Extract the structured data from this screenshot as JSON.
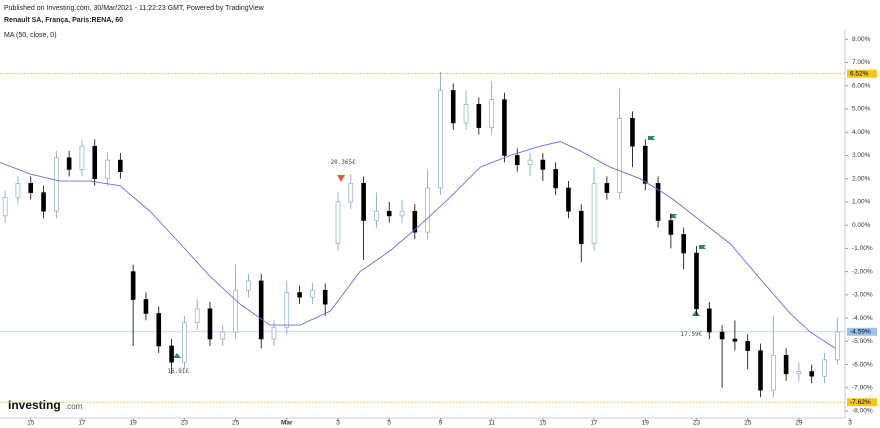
{
  "chart_data": {
    "type": "candlestick",
    "published": "Published on Investing.com, 30/Mar/2021 - 11:22:23 GMT, Powered by TradingView",
    "title": "Renault SA, França, Paris:RENA, 60",
    "logo": "Investing",
    "logo_suffix": ".com",
    "up_color": "#ffffff",
    "up_border": "#7f9fc8",
    "down_color": "#000000",
    "xlim": [
      0.4,
      16.9
    ],
    "ylim": [
      -8.3,
      8.4
    ],
    "grid": false,
    "xticks": [
      {
        "value": 1,
        "label": "15"
      },
      {
        "value": 2,
        "label": "17"
      },
      {
        "value": 3,
        "label": "19"
      },
      {
        "value": 4,
        "label": "23"
      },
      {
        "value": 5,
        "label": "25"
      },
      {
        "value": 6,
        "label": "Mar"
      },
      {
        "value": 7,
        "label": "3"
      },
      {
        "value": 8,
        "label": "5"
      },
      {
        "value": 9,
        "label": "9"
      },
      {
        "value": 10,
        "label": "11"
      },
      {
        "value": 11,
        "label": "15"
      },
      {
        "value": 12,
        "label": "17"
      },
      {
        "value": 13,
        "label": "19"
      },
      {
        "value": 14,
        "label": "23"
      },
      {
        "value": 15,
        "label": "25"
      },
      {
        "value": 16,
        "label": "29"
      },
      {
        "value": 17,
        "label": "3"
      }
    ],
    "yticks": [
      {
        "value": 8,
        "label": "8.00%"
      },
      {
        "value": 7,
        "label": "7.00%"
      },
      {
        "value": 6,
        "label": "6.00%"
      },
      {
        "value": 5,
        "label": "5.00%"
      },
      {
        "value": 4,
        "label": "4.00%"
      },
      {
        "value": 3,
        "label": "3.00%"
      },
      {
        "value": 2,
        "label": "2.00%"
      },
      {
        "value": 1,
        "label": "1.00%"
      },
      {
        "value": 0,
        "label": "0.00%"
      },
      {
        "value": -1,
        "label": "-1.00%"
      },
      {
        "value": -2,
        "label": "-2.00%"
      },
      {
        "value": -3,
        "label": "-3.00%"
      },
      {
        "value": -4,
        "label": "-4.00%"
      },
      {
        "value": -5,
        "label": "-5.00%"
      },
      {
        "value": -6,
        "label": "-6.00%"
      },
      {
        "value": -7,
        "label": "-7.00%"
      },
      {
        "value": -8,
        "label": "-8.00%"
      }
    ],
    "levels": [
      {
        "value": 6.52,
        "label": "6.52%",
        "color": "#f5c518",
        "dotted": true
      },
      {
        "value": -4.59,
        "label": "-4.59%",
        "color": "#9cc2e8",
        "dotted": false
      },
      {
        "value": -7.62,
        "label": "-7.62%",
        "color": "#f5c518",
        "dotted": true
      }
    ],
    "annotations": [
      {
        "text": "20.365€",
        "x": 7.1,
        "y": 2.7
      },
      {
        "text": "16.91€",
        "x": 3.88,
        "y": -6.3
      },
      {
        "text": "17.59€",
        "x": 13.9,
        "y": -4.7
      }
    ],
    "x": [
      0.5,
      0.75,
      1,
      1.25,
      1.5,
      1.75,
      2,
      2.25,
      2.5,
      2.75,
      3,
      3.25,
      3.5,
      3.75,
      4,
      4.25,
      4.5,
      4.75,
      5,
      5.25,
      5.5,
      5.75,
      6,
      6.25,
      6.5,
      6.75,
      7,
      7.25,
      7.5,
      7.75,
      8,
      8.25,
      8.5,
      8.75,
      9,
      9.25,
      9.5,
      9.75,
      10,
      10.25,
      10.5,
      10.75,
      11,
      11.25,
      11.5,
      11.75,
      12,
      12.25,
      12.5,
      12.75,
      13,
      13.25,
      13.5,
      13.75,
      14,
      14.25,
      14.5,
      14.75,
      15,
      15.25,
      15.5,
      15.75,
      16,
      16.25,
      16.5,
      16.75
    ],
    "open": [
      0.4,
      1.2,
      1.8,
      1.4,
      0.6,
      2.9,
      2.4,
      3.4,
      2.0,
      2.8,
      -2.0,
      -3.2,
      -3.8,
      -5.2,
      -5.9,
      -4.2,
      -3.6,
      -4.9,
      -4.6,
      -2.8,
      -2.4,
      -4.9,
      -4.4,
      -2.9,
      -3.1,
      -2.8,
      -0.8,
      1.0,
      1.8,
      0.2,
      0.6,
      0.4,
      0.6,
      -0.3,
      1.6,
      5.8,
      4.4,
      5.2,
      4.2,
      5.4,
      3.0,
      2.6,
      2.8,
      2.4,
      1.6,
      0.6,
      -0.8,
      1.8,
      1.4,
      4.6,
      3.4,
      1.8,
      0.2,
      -0.4,
      -1.2,
      -3.6,
      -4.6,
      -4.9,
      -5.0,
      -5.4,
      -7.1,
      -5.6,
      -6.4,
      -6.3,
      -6.5,
      -5.8
    ],
    "high": [
      1.5,
      2.1,
      2.1,
      1.7,
      3.2,
      3.2,
      3.7,
      3.7,
      3.1,
      3.1,
      -1.7,
      -2.9,
      -3.5,
      -4.9,
      -3.9,
      -3.2,
      -3.3,
      -4.3,
      -1.7,
      -2.1,
      -2.1,
      -4.1,
      -2.4,
      -2.6,
      -2.5,
      -2.5,
      1.4,
      2.2,
      2.1,
      1.4,
      1.0,
      1.1,
      0.9,
      2.4,
      6.6,
      6.1,
      5.8,
      5.5,
      6.2,
      5.7,
      3.3,
      3.1,
      3.1,
      2.7,
      1.9,
      0.9,
      2.5,
      2.1,
      5.9,
      4.9,
      3.7,
      2.1,
      0.5,
      -0.1,
      -0.9,
      -3.3,
      -4.3,
      -4.1,
      -4.7,
      -5.1,
      -3.9,
      -5.3,
      -5.9,
      -6.0,
      -5.5,
      -4.0
    ],
    "low": [
      0.1,
      0.9,
      1.1,
      0.3,
      0.3,
      2.1,
      2.1,
      1.7,
      1.7,
      2.0,
      -5.2,
      -4.1,
      -5.5,
      -6.4,
      -6.2,
      -4.5,
      -5.2,
      -5.2,
      -4.9,
      -3.1,
      -5.3,
      -5.2,
      -4.7,
      -3.4,
      -3.4,
      -3.9,
      -1.1,
      0.7,
      -1.5,
      -0.1,
      0.1,
      0.1,
      -0.6,
      -0.6,
      1.3,
      4.1,
      4.1,
      3.9,
      3.9,
      2.7,
      2.3,
      2.1,
      1.9,
      1.3,
      0.3,
      -1.6,
      -1.1,
      1.1,
      1.1,
      2.5,
      1.5,
      -0.1,
      -1.0,
      -1.9,
      -3.9,
      -4.9,
      -7.0,
      -5.4,
      -6.2,
      -7.4,
      -7.4,
      -6.7,
      -6.7,
      -6.8,
      -6.8,
      -6.0
    ],
    "close": [
      1.2,
      1.8,
      1.4,
      0.6,
      2.9,
      2.4,
      3.4,
      2.0,
      2.8,
      2.3,
      -3.2,
      -3.8,
      -5.2,
      -5.9,
      -4.2,
      -3.6,
      -4.9,
      -4.6,
      -2.8,
      -2.4,
      -4.9,
      -4.4,
      -2.9,
      -3.1,
      -2.8,
      -3.4,
      1.0,
      1.8,
      0.2,
      0.6,
      0.4,
      0.6,
      -0.3,
      1.6,
      5.8,
      4.4,
      5.2,
      4.2,
      5.4,
      3.0,
      2.6,
      2.8,
      2.4,
      1.6,
      0.6,
      -0.8,
      1.8,
      1.4,
      4.6,
      3.4,
      1.8,
      0.2,
      -0.4,
      -1.2,
      -3.6,
      -4.6,
      -4.9,
      -5.0,
      -5.4,
      -7.1,
      -5.6,
      -6.4,
      -6.3,
      -6.5,
      -5.8,
      -4.6
    ],
    "series": [
      {
        "name": "MA (50, close, 0)",
        "color": "#6b6bea",
        "x": [
          0.4,
          0.99,
          1.57,
          2.16,
          2.74,
          3.33,
          3.92,
          4.5,
          5.09,
          5.67,
          6.26,
          6.85,
          7.43,
          8.02,
          8.6,
          9.19,
          9.78,
          10.36,
          10.95,
          11.34,
          11.73,
          12.31,
          12.9,
          13.49,
          14.07,
          14.66,
          15.24,
          15.83,
          16.22,
          16.71
        ],
        "values": [
          2.7,
          2.2,
          1.9,
          1.9,
          1.7,
          0.6,
          -0.8,
          -2.2,
          -3.4,
          -4.3,
          -4.3,
          -3.7,
          -2.0,
          -1.1,
          0.0,
          1.2,
          2.5,
          3.0,
          3.4,
          3.6,
          3.2,
          2.5,
          2.0,
          1.2,
          0.2,
          -0.8,
          -2.3,
          -3.8,
          -4.6,
          -5.3
        ]
      }
    ]
  }
}
